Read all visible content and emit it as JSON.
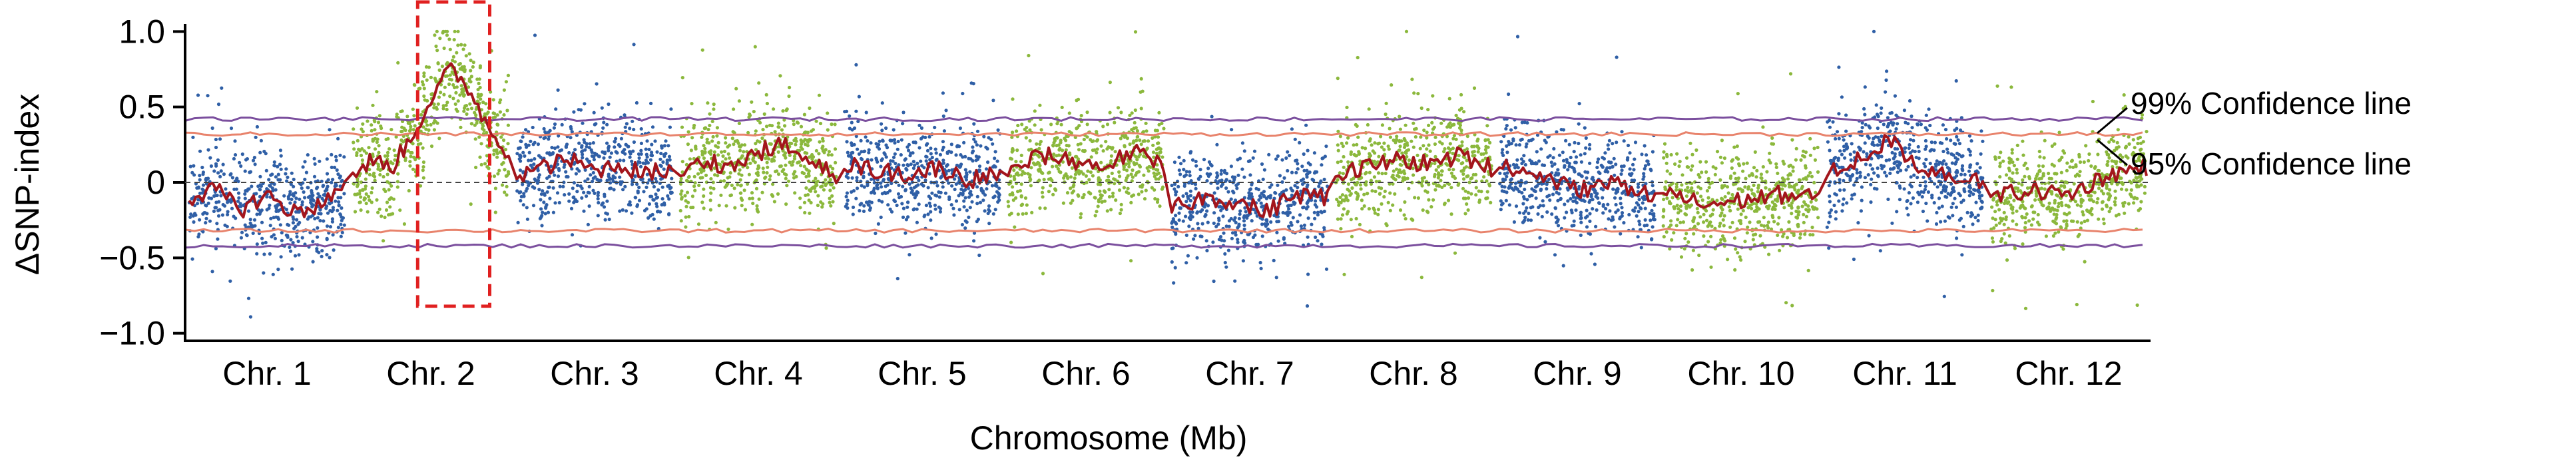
{
  "chart_data": {
    "type": "scatter",
    "title": "",
    "xlabel": "Chromosome (Mb)",
    "ylabel": "ΔSNP-index",
    "ylim": [
      -1.05,
      1.05
    ],
    "yticks": [
      1.0,
      0.5,
      0,
      -0.5,
      -1.0
    ],
    "ytick_labels": [
      "1.0",
      "0.5",
      "0",
      "−0.5",
      "−1.0"
    ],
    "grid": false,
    "zero_line": "dashed",
    "legend": "annotations at right",
    "chromosomes": [
      {
        "name": "Chr. 1",
        "color": "#2f5fa6",
        "mean": [
          -0.1,
          -0.05,
          -0.18,
          -0.08,
          -0.2,
          -0.15,
          -0.05
        ]
      },
      {
        "name": "Chr. 2",
        "color": "#8bb83c",
        "mean": [
          0.05,
          0.15,
          0.1,
          0.3,
          0.55,
          0.75,
          0.62,
          0.35,
          0.2
        ]
      },
      {
        "name": "Chr. 3",
        "color": "#2f5fa6",
        "mean": [
          0.05,
          0.1,
          0.15,
          0.08,
          0.12,
          0.05,
          0.1
        ]
      },
      {
        "name": "Chr. 4",
        "color": "#8bb83c",
        "mean": [
          0.05,
          0.15,
          0.1,
          0.2,
          0.25,
          0.12,
          0.05
        ]
      },
      {
        "name": "Chr. 5",
        "color": "#2f5fa6",
        "mean": [
          0.12,
          0.08,
          0.05,
          0.1,
          0.02,
          0.05
        ]
      },
      {
        "name": "Chr. 6",
        "color": "#8bb83c",
        "mean": [
          0.05,
          0.18,
          0.15,
          0.1,
          0.2,
          0.12
        ]
      },
      {
        "name": "Chr. 7",
        "color": "#2f5fa6",
        "mean": [
          -0.18,
          -0.1,
          -0.12,
          -0.2,
          -0.08,
          -0.1
        ]
      },
      {
        "name": "Chr. 8",
        "color": "#8bb83c",
        "mean": [
          0.05,
          0.1,
          0.15,
          0.12,
          0.18,
          0.1
        ]
      },
      {
        "name": "Chr. 9",
        "color": "#2f5fa6",
        "mean": [
          0.1,
          0.05,
          -0.05,
          0.0,
          -0.08
        ]
      },
      {
        "name": "Chr. 10",
        "color": "#8bb83c",
        "mean": [
          -0.05,
          -0.15,
          -0.12,
          -0.08,
          -0.1
        ]
      },
      {
        "name": "Chr. 11",
        "color": "#2f5fa6",
        "mean": [
          0.05,
          0.15,
          0.28,
          0.1,
          0.05,
          0.0
        ]
      },
      {
        "name": "Chr. 12",
        "color": "#8bb83c",
        "mean": [
          -0.1,
          -0.05,
          -0.08,
          0.05,
          0.1
        ]
      }
    ],
    "confidence_lines": [
      {
        "label": "99% Confidence line",
        "color": "#7b4f9e",
        "upper": 0.42,
        "lower": -0.42
      },
      {
        "label": "95% Confidence line",
        "color": "#e8836c",
        "upper": 0.32,
        "lower": -0.32
      }
    ],
    "sliding_window_color": "#a3151c",
    "highlight": {
      "chromosome": "Chr. 2",
      "color": "#e02020",
      "style": "dashed box"
    }
  }
}
